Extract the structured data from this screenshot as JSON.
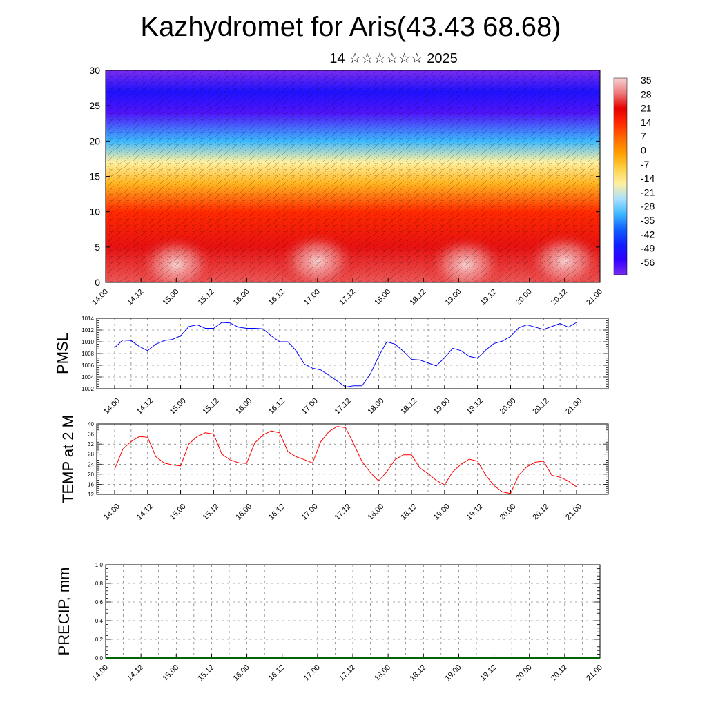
{
  "title": "Kazhydromet for Aris(43.43 68.68)",
  "subtitle": "14 ☆☆☆☆☆☆ 2025",
  "time_labels": [
    "14.00",
    "14.12",
    "15.00",
    "15.12",
    "16.00",
    "16.12",
    "17.00",
    "17.12",
    "18.00",
    "18.12",
    "19.00",
    "19.12",
    "20.00",
    "20.12",
    "21.00"
  ],
  "chart_data": [
    {
      "type": "heatmap",
      "title": "Kazhydromet for Aris(43.43 68.68)",
      "subtitle": "14 ☆☆☆☆☆☆ 2025",
      "ylim": [
        0,
        30
      ],
      "yticks": [
        0,
        5,
        10,
        15,
        20,
        25,
        30
      ],
      "x_ticks": [
        "14.00",
        "14.12",
        "15.00",
        "15.12",
        "16.00",
        "16.12",
        "17.00",
        "17.12",
        "18.00",
        "18.12",
        "19.00",
        "19.12",
        "20.00",
        "20.12",
        "21.00"
      ],
      "colorbar": {
        "labels": [
          "35",
          "28",
          "21",
          "14",
          "7",
          "0",
          "-7",
          "-14",
          "-21",
          "-28",
          "-35",
          "-42",
          "-49",
          "-56"
        ],
        "colors": [
          "#f6d3d3",
          "#ee7a7a",
          "#e60000",
          "#ff2a00",
          "#ff6a00",
          "#ffa000",
          "#ffd24a",
          "#fff0a0",
          "#a8e0ff",
          "#3cb8ff",
          "#1060ff",
          "#1020ff",
          "#3000ff",
          "#7a2cf0"
        ]
      },
      "profile": [
        {
          "level": 0,
          "value": 26
        },
        {
          "level": 5,
          "value": 22
        },
        {
          "level": 10,
          "value": 14
        },
        {
          "level": 14,
          "value": -3
        },
        {
          "level": 17,
          "value": -14
        },
        {
          "level": 20,
          "value": -28
        },
        {
          "level": 24,
          "value": -52
        },
        {
          "level": 27,
          "value": -45
        },
        {
          "level": 30,
          "value": -60
        }
      ],
      "warm_spots": [
        {
          "time": 1.0,
          "level": 2.5,
          "value": 33
        },
        {
          "time": 3.0,
          "level": 3.0,
          "value": 32
        },
        {
          "time": 5.1,
          "level": 2.5,
          "value": 38
        },
        {
          "time": 6.5,
          "level": 3.0,
          "value": 30
        }
      ]
    },
    {
      "type": "line",
      "ylabel": "PMSL",
      "ylim": [
        1002,
        1014
      ],
      "yticks": [
        1002,
        1004,
        1006,
        1008,
        1010,
        1012,
        1014
      ],
      "x_ticks": [
        "14.00",
        "14.12",
        "15.00",
        "15.12",
        "16.00",
        "16.12",
        "17.00",
        "17.12",
        "18.00",
        "18.12",
        "19.00",
        "19.12",
        "20.00",
        "20.12",
        "21.00"
      ],
      "color": "#0000ff",
      "x": [
        0,
        0.125,
        0.25,
        0.375,
        0.5,
        0.625,
        0.75,
        0.875,
        1,
        1.125,
        1.25,
        1.375,
        1.5,
        1.625,
        1.75,
        1.875,
        2,
        2.125,
        2.25,
        2.375,
        2.5,
        2.625,
        2.75,
        2.875,
        3,
        3.125,
        3.25,
        3.375,
        3.5,
        3.625,
        3.75,
        3.875,
        4,
        4.125,
        4.25,
        4.375,
        4.5,
        4.625,
        4.75,
        4.875,
        5,
        5.125,
        5.25,
        5.375,
        5.5,
        5.625,
        5.75,
        5.875,
        6,
        6.125,
        6.25,
        6.375,
        6.5,
        6.625,
        6.75,
        6.875,
        7
      ],
      "y": [
        1009,
        1010.3,
        1010.2,
        1009.2,
        1008.5,
        1009.6,
        1010.2,
        1010.4,
        1011,
        1012.6,
        1012.9,
        1012.3,
        1012.3,
        1013.3,
        1013.2,
        1012.5,
        1012.3,
        1012.3,
        1012.2,
        1011,
        1010,
        1010,
        1008.5,
        1006.2,
        1005.5,
        1005.2,
        1004.3,
        1003.3,
        1002.3,
        1002.5,
        1002.5,
        1004.5,
        1007.5,
        1010,
        1009.6,
        1008.4,
        1007,
        1006.9,
        1006.4,
        1005.9,
        1007.3,
        1008.9,
        1008.5,
        1007.5,
        1007.2,
        1008.6,
        1009.7,
        1010.1,
        1010.9,
        1012.4,
        1012.9,
        1012.5,
        1012.1,
        1012.6,
        1013.1,
        1012.5,
        1013.3
      ]
    },
    {
      "type": "line",
      "ylabel": "TEMP at 2 M",
      "ylim": [
        12,
        40
      ],
      "yticks": [
        12,
        16,
        20,
        24,
        28,
        32,
        36,
        40
      ],
      "x_ticks": [
        "14.00",
        "14.12",
        "15.00",
        "15.12",
        "16.00",
        "16.12",
        "17.00",
        "17.12",
        "18.00",
        "18.12",
        "19.00",
        "19.12",
        "20.00",
        "20.12",
        "21.00"
      ],
      "color": "#ff0000",
      "x": [
        0,
        0.125,
        0.25,
        0.375,
        0.5,
        0.625,
        0.75,
        0.875,
        1,
        1.125,
        1.25,
        1.375,
        1.5,
        1.625,
        1.75,
        1.875,
        2,
        2.125,
        2.25,
        2.375,
        2.5,
        2.625,
        2.75,
        2.875,
        3,
        3.125,
        3.25,
        3.375,
        3.5,
        3.625,
        3.75,
        3.875,
        4,
        4.125,
        4.25,
        4.375,
        4.5,
        4.625,
        4.75,
        4.875,
        5,
        5.125,
        5.25,
        5.375,
        5.5,
        5.625,
        5.75,
        5.875,
        6,
        6.125,
        6.25,
        6.375,
        6.5,
        6.625,
        6.75,
        6.875,
        7
      ],
      "y": [
        22,
        30,
        33,
        35,
        34.7,
        27,
        24.5,
        23.7,
        23.3,
        32,
        35,
        36.5,
        36,
        28,
        25.7,
        24.6,
        24.3,
        32.5,
        35.7,
        37.2,
        36.5,
        29,
        27,
        25.8,
        24.5,
        33,
        37,
        39,
        38.5,
        32,
        25,
        20.7,
        17.3,
        21,
        25.8,
        27.7,
        27.7,
        22.5,
        20.3,
        17.5,
        15.8,
        21,
        24,
        26,
        25.2,
        19.6,
        15.5,
        13,
        12.3,
        19.7,
        23,
        24.8,
        25.2,
        19.6,
        18.8,
        17.3,
        15
      ]
    },
    {
      "type": "line",
      "ylabel": "PRECIP, mm",
      "ylim": [
        0,
        1
      ],
      "yticks": [
        0.0,
        0.2,
        0.4,
        0.6,
        0.8,
        1.0
      ],
      "ytick_labels": [
        "0.0",
        "0.2",
        "0.4",
        "0.6",
        "0.8",
        "1.0"
      ],
      "x_ticks": [
        "14.00",
        "14.12",
        "15.00",
        "15.12",
        "16.00",
        "16.12",
        "17.00",
        "17.12",
        "18.00",
        "18.12",
        "19.00",
        "19.12",
        "20.00",
        "20.12",
        "21.00"
      ],
      "color": "#006400",
      "x": [
        0,
        7
      ],
      "y": [
        0,
        0
      ]
    }
  ]
}
